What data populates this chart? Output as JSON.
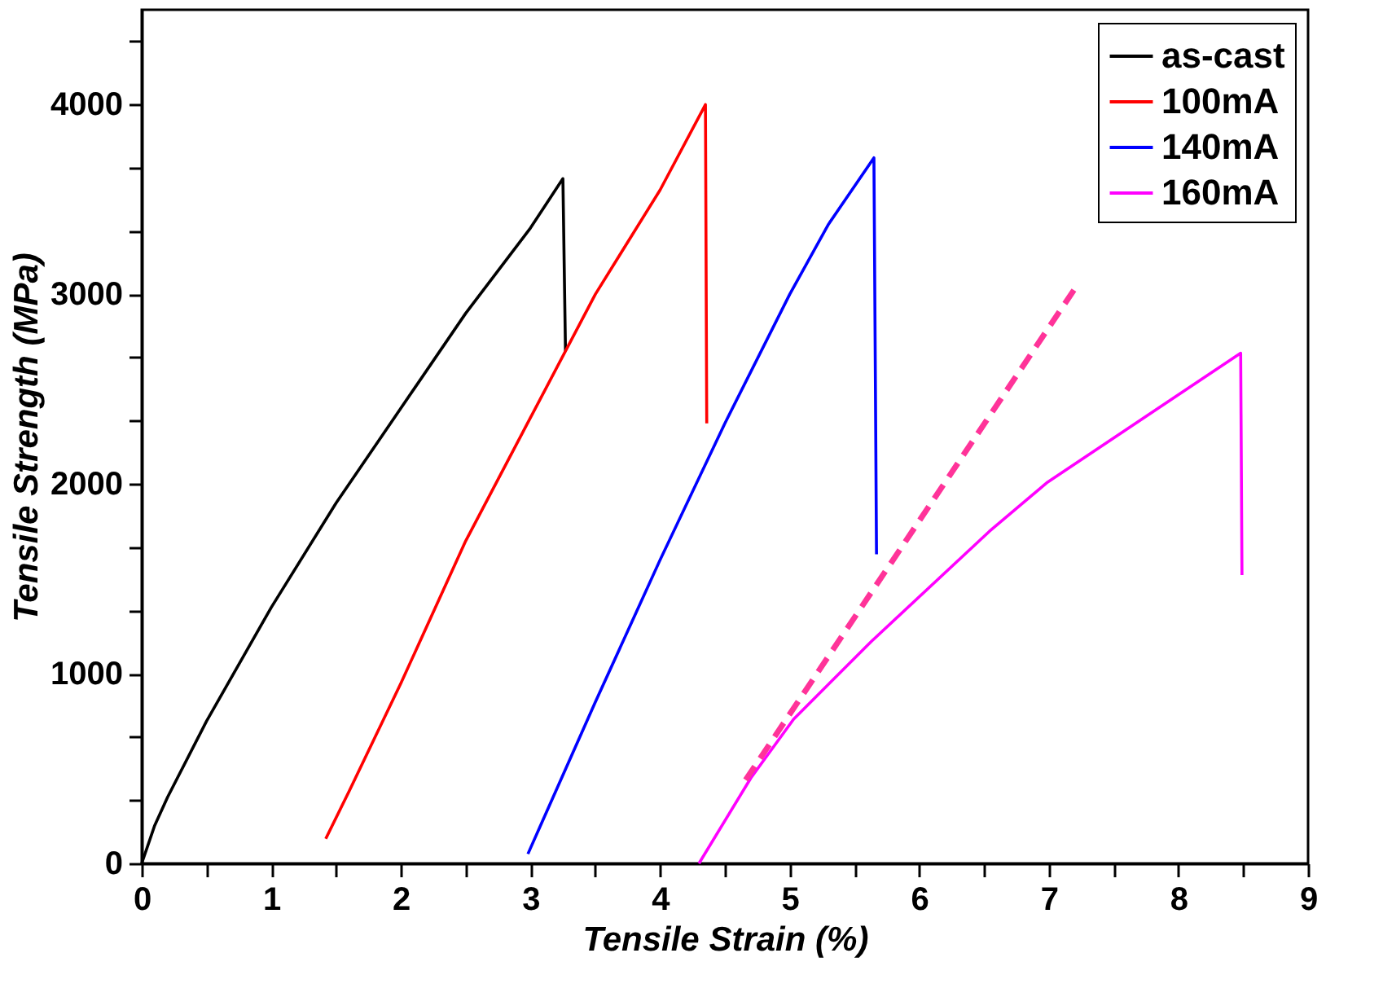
{
  "chart_data": {
    "type": "line",
    "xlabel": "Tensile Strain (%)",
    "ylabel": "Tensile Strength (MPa)",
    "xlim": [
      0,
      9
    ],
    "ylim": [
      0,
      4500
    ],
    "xticks": [
      0,
      {
        "value": 0.5,
        "label": null
      },
      1,
      {
        "value": 1.5,
        "label": null
      },
      2,
      {
        "value": 2.5,
        "label": null
      },
      3,
      {
        "value": 3.5,
        "label": null
      },
      4,
      {
        "value": 4.5,
        "label": null
      },
      5,
      {
        "value": 5.5,
        "label": null
      },
      6,
      {
        "value": 6.5,
        "label": null
      },
      7,
      {
        "value": 7.5,
        "label": null
      },
      8,
      {
        "value": 8.5,
        "label": null
      },
      9
    ],
    "yticks": [
      0,
      {
        "value": 333,
        "label": null
      },
      {
        "value": 667,
        "label": null
      },
      1000,
      {
        "value": 1333,
        "label": null
      },
      {
        "value": 1667,
        "label": null
      },
      2000,
      {
        "value": 2333,
        "label": null
      },
      {
        "value": 2667,
        "label": null
      },
      3000,
      {
        "value": 3333,
        "label": null
      },
      {
        "value": 3667,
        "label": null
      },
      4000,
      {
        "value": 4333,
        "label": null
      }
    ],
    "grid": false,
    "legend": "top right",
    "marker": "none",
    "series": [
      {
        "name": "as-cast",
        "color": "#000000",
        "x": [
          0,
          0.1,
          0.2,
          0.5,
          1,
          1.5,
          2,
          2.5,
          3,
          3.25,
          3.27
        ],
        "values": [
          0,
          200,
          350,
          750,
          1350,
          1900,
          2400,
          2900,
          3350,
          3610,
          2700
        ]
      },
      {
        "name": "100mA",
        "color": "#ff0000",
        "x": [
          1.42,
          1.6,
          2,
          2.5,
          3,
          3.5,
          4,
          4.35,
          4.36
        ],
        "values": [
          130,
          380,
          950,
          1700,
          2350,
          3000,
          3550,
          4000,
          2320
        ]
      },
      {
        "name": "140mA",
        "color": "#0000ff",
        "x": [
          2.98,
          3.5,
          4,
          4.5,
          5,
          5.3,
          5.65,
          5.67
        ],
        "values": [
          50,
          850,
          1600,
          2320,
          3000,
          3370,
          3720,
          1630
        ]
      },
      {
        "name": "160mA",
        "color": "#ff00ff",
        "x": [
          4.3,
          4.7,
          5.03,
          5.63,
          6.54,
          6.99,
          8.48,
          8.49
        ],
        "values": [
          0,
          450,
          760,
          1170,
          1750,
          2010,
          2690,
          1520
        ]
      },
      {
        "color": "#ff3399",
        "line_style": "dashed",
        "x": [
          4.66,
          7.22
        ],
        "values": [
          440,
          3050
        ]
      }
    ]
  }
}
